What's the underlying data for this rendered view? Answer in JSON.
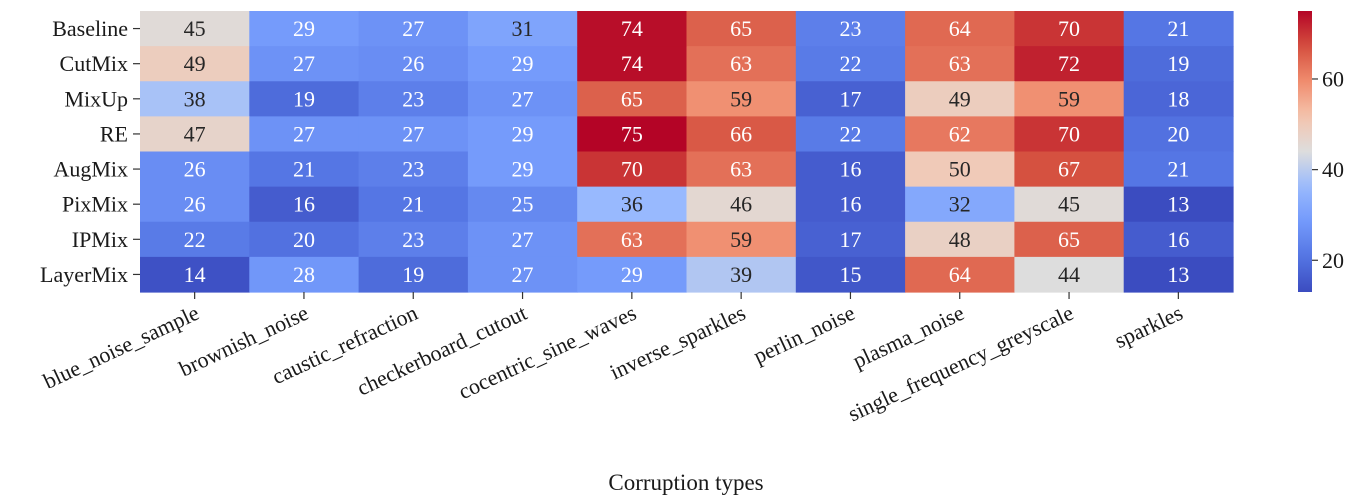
{
  "chart_data": {
    "type": "heatmap",
    "title": "",
    "xlabel": "Corruption types",
    "ylabel": "",
    "rows": [
      "Baseline",
      "CutMix",
      "MixUp",
      "RE",
      "AugMix",
      "PixMix",
      "IPMix",
      "LayerMix"
    ],
    "columns": [
      "blue_noise_sample",
      "brownish_noise",
      "caustic_refraction",
      "checkerboard_cutout",
      "cocentric_sine_waves",
      "inverse_sparkles",
      "perlin_noise",
      "plasma_noise",
      "single_frequency_greyscale",
      "sparkles"
    ],
    "values": [
      [
        45,
        29,
        27,
        31,
        74,
        65,
        23,
        64,
        70,
        21
      ],
      [
        49,
        27,
        26,
        29,
        74,
        63,
        22,
        63,
        72,
        19
      ],
      [
        38,
        19,
        23,
        27,
        65,
        59,
        17,
        49,
        59,
        18
      ],
      [
        47,
        27,
        27,
        29,
        75,
        66,
        22,
        62,
        70,
        20
      ],
      [
        26,
        21,
        23,
        29,
        70,
        63,
        16,
        50,
        67,
        21
      ],
      [
        26,
        16,
        21,
        25,
        36,
        46,
        16,
        32,
        45,
        13
      ],
      [
        22,
        20,
        23,
        27,
        63,
        59,
        17,
        48,
        65,
        16
      ],
      [
        14,
        28,
        19,
        27,
        29,
        39,
        15,
        64,
        44,
        13
      ]
    ],
    "colormap": "coolwarm",
    "vmin": 13,
    "vmax": 75,
    "colorbar_ticks": [
      20,
      40,
      60
    ],
    "annotations": true
  }
}
